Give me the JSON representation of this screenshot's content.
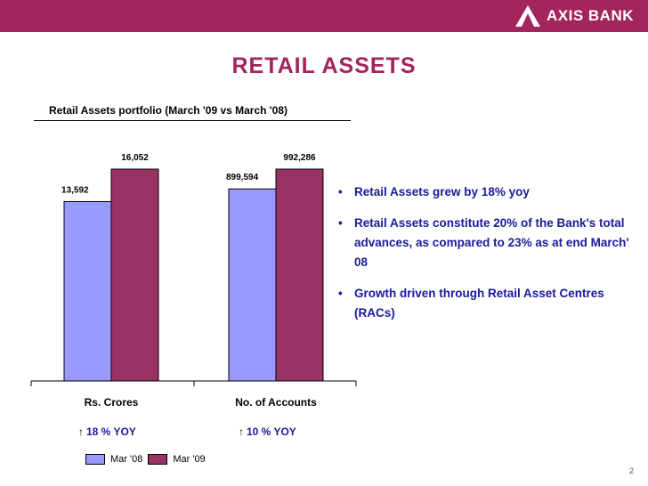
{
  "header": {
    "brand": "AXIS BANK",
    "brand_color": "#a3255e"
  },
  "slide": {
    "title": "RETAIL ASSETS",
    "page_number": "2"
  },
  "chart_data": {
    "type": "bar",
    "title": "Retail Assets portfolio (March '09 vs March '08)",
    "categories": [
      "Rs. Crores",
      "No. of Accounts"
    ],
    "series": [
      {
        "name": "Mar '08",
        "values": [
          13592,
          899594
        ],
        "labels": [
          "13,592",
          "899,594"
        ],
        "color": "#9999ff"
      },
      {
        "name": "Mar '09",
        "values": [
          16052,
          992286
        ],
        "labels": [
          "16,052",
          "992,286"
        ],
        "color": "#993366"
      }
    ],
    "growth": [
      {
        "arrow": "↑",
        "text": "18 % YOY"
      },
      {
        "arrow": "↑",
        "text": "10  % YOY"
      }
    ],
    "legend_position": "bottom",
    "grid": false
  },
  "bullets": [
    "Retail Assets grew by 18% yoy",
    "Retail Assets constitute 20% of the Bank's total advances, as compared to 23%  as at end March' 08",
    "Growth driven through Retail Asset Centres (RACs)"
  ]
}
